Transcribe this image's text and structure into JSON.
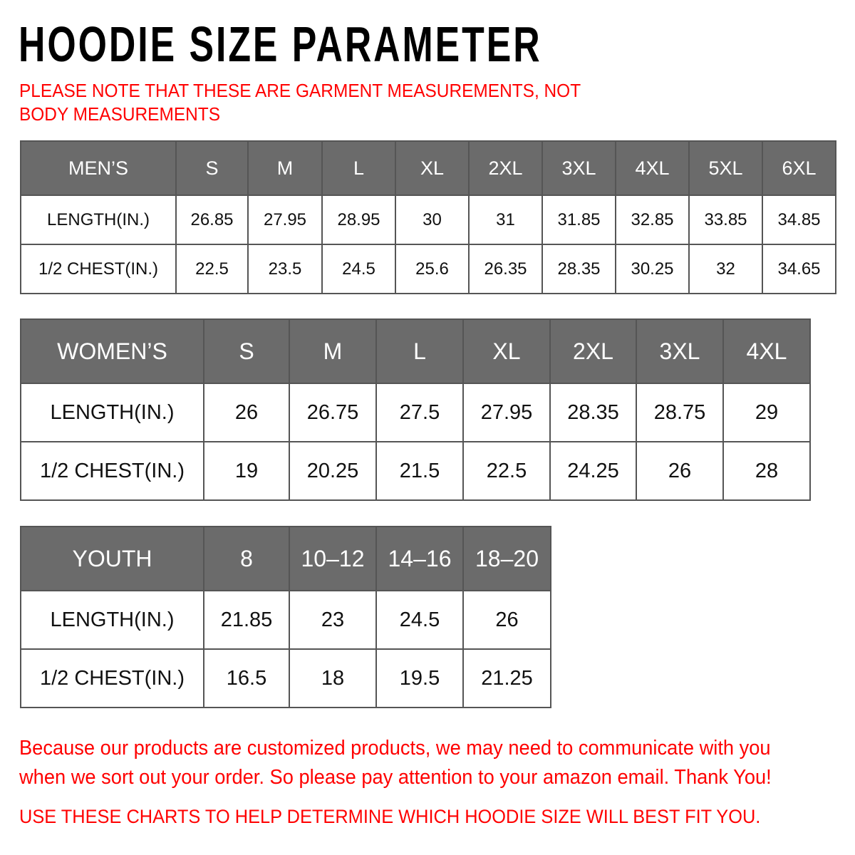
{
  "title": "HOODIE SIZE PARAMETER",
  "note": "PLEASE NOTE THAT THESE ARE GARMENT MEASUREMENTS, NOT BODY MEASUREMENTS",
  "header_color": "#6b6b6b",
  "accent_color": "#ff0000",
  "tables": {
    "men": {
      "header": [
        "MEN’S",
        "S",
        "M",
        "L",
        "XL",
        "2XL",
        "3XL",
        "4XL",
        "5XL",
        "6XL"
      ],
      "rows": [
        [
          "LENGTH(IN.)",
          "26.85",
          "27.95",
          "28.95",
          "30",
          "31",
          "31.85",
          "32.85",
          "33.85",
          "34.85"
        ],
        [
          "1/2 CHEST(IN.)",
          "22.5",
          "23.5",
          "24.5",
          "25.6",
          "26.35",
          "28.35",
          "30.25",
          "32",
          "34.65"
        ]
      ]
    },
    "women": {
      "header": [
        "WOMEN’S",
        "S",
        "M",
        "L",
        "XL",
        "2XL",
        "3XL",
        "4XL"
      ],
      "rows": [
        [
          "LENGTH(IN.)",
          "26",
          "26.75",
          "27.5",
          "27.95",
          "28.35",
          "28.75",
          "29"
        ],
        [
          "1/2 CHEST(IN.)",
          "19",
          "20.25",
          "21.5",
          "22.5",
          "24.25",
          "26",
          "28"
        ]
      ]
    },
    "youth": {
      "header": [
        "YOUTH",
        "8",
        "10–12",
        "14–16",
        "18–20"
      ],
      "rows": [
        [
          "LENGTH(IN.)",
          "21.85",
          "23",
          "24.5",
          "26"
        ],
        [
          "1/2 CHEST(IN.)",
          "16.5",
          "18",
          "19.5",
          "21.25"
        ]
      ]
    }
  },
  "footer": {
    "message": "Because our products are customized products, we may need to communicate with you when we sort out your order. So please pay attention to your amazon email. Thank You!",
    "instruction": "USE THESE CHARTS TO HELP DETERMINE WHICH HOODIE SIZE WILL BEST FIT YOU."
  }
}
